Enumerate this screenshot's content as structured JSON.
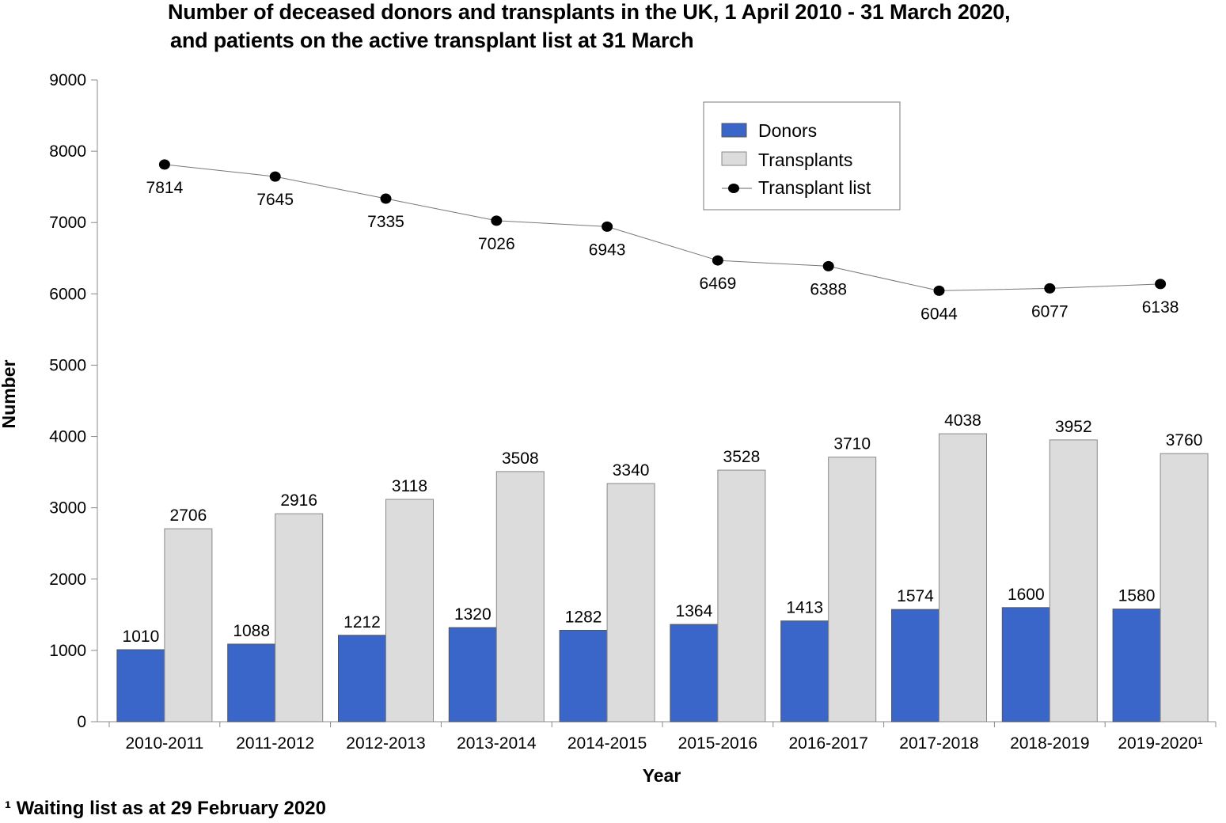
{
  "chart_data": {
    "type": "bar",
    "title_line1": "Number of deceased donors and transplants in the UK, 1 April 2010 - 31 March 2020,",
    "title_line2": "and patients on the active transplant list at 31 March",
    "xlabel": "Year",
    "ylabel": "Number",
    "ylim": [
      0,
      9000
    ],
    "yticks": [
      0,
      1000,
      2000,
      3000,
      4000,
      5000,
      6000,
      7000,
      8000,
      9000
    ],
    "categories": [
      "2010-2011",
      "2011-2012",
      "2012-2013",
      "2013-2014",
      "2014-2015",
      "2015-2016",
      "2016-2017",
      "2017-2018",
      "2018-2019",
      "2019-2020¹"
    ],
    "series": [
      {
        "name": "Donors",
        "type": "bar",
        "color": "#3a66c9",
        "values": [
          1010,
          1088,
          1212,
          1320,
          1282,
          1364,
          1413,
          1574,
          1600,
          1580
        ]
      },
      {
        "name": "Transplants",
        "type": "bar",
        "color": "#dcdcdc",
        "values": [
          2706,
          2916,
          3118,
          3508,
          3340,
          3528,
          3710,
          4038,
          3952,
          3760
        ]
      },
      {
        "name": "Transplant list",
        "type": "line",
        "color": "#000000",
        "values": [
          7814,
          7645,
          7335,
          7026,
          6943,
          6469,
          6388,
          6044,
          6077,
          6138
        ]
      }
    ],
    "legend_position": "top-right",
    "grid": false,
    "footnote": "¹ Waiting list as at 29 February 2020"
  }
}
